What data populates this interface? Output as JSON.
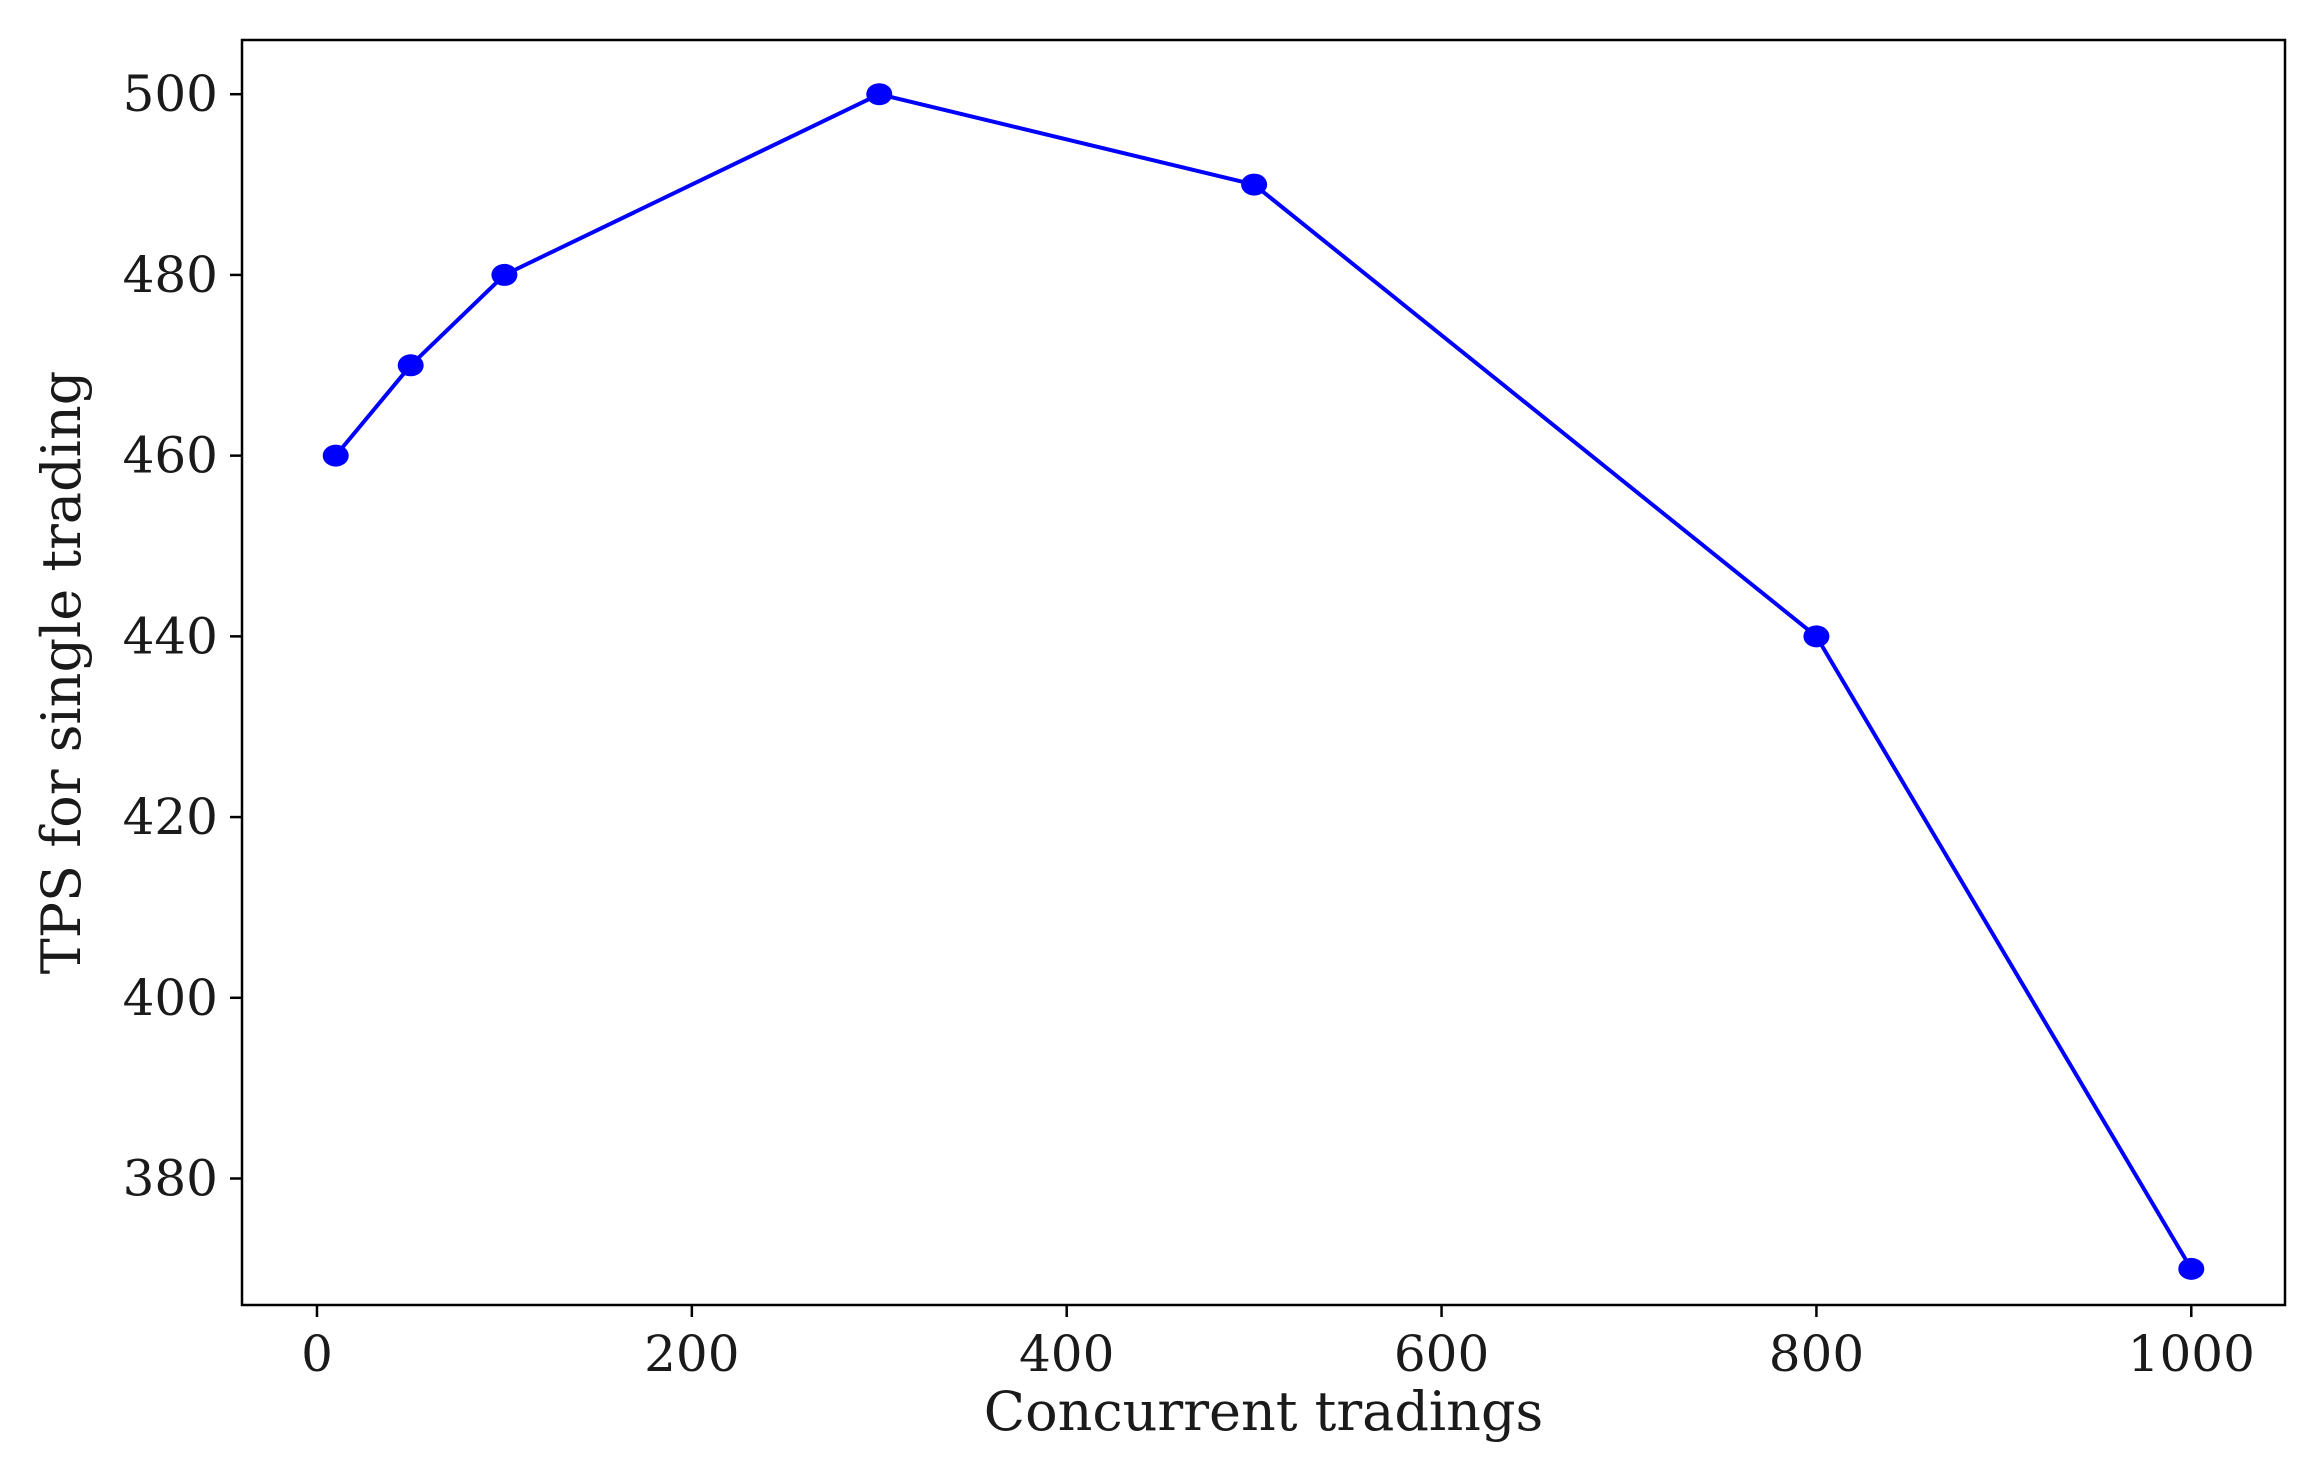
{
  "chart_data": {
    "type": "line",
    "title": "",
    "xlabel": "Concurrent tradings",
    "ylabel": "TPS for single trading",
    "xlim": [
      -40,
      1050
    ],
    "ylim": [
      366,
      506
    ],
    "xticks": [
      0,
      200,
      400,
      600,
      800,
      1000
    ],
    "yticks": [
      380,
      400,
      420,
      440,
      460,
      480,
      500
    ],
    "grid": false,
    "legend": "none",
    "series": [
      {
        "color": "#0000ff",
        "marker": "circle",
        "x": [
          10,
          50,
          100,
          300,
          500,
          800,
          1000
        ],
        "y": [
          460,
          470,
          480,
          500,
          490,
          440,
          370
        ]
      }
    ]
  }
}
